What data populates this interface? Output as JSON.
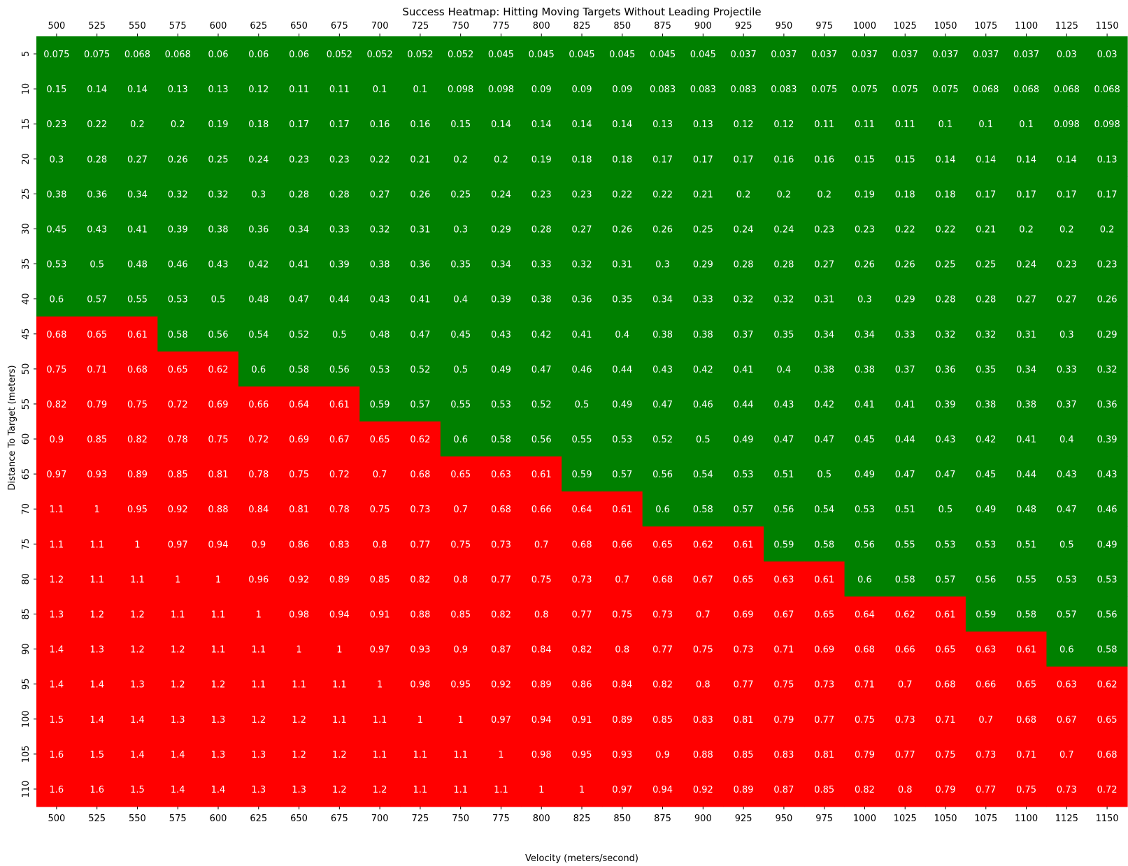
{
  "chart_data": {
    "type": "heatmap",
    "title": "Success Heatmap: Hitting Moving Targets Without Leading Projectile",
    "xlabel": "Velocity (meters/second)",
    "ylabel": "Distance To Target (meters)",
    "x": [
      "500",
      "525",
      "550",
      "575",
      "600",
      "625",
      "650",
      "675",
      "700",
      "725",
      "750",
      "775",
      "800",
      "825",
      "850",
      "875",
      "900",
      "925",
      "950",
      "975",
      "1000",
      "1025",
      "1050",
      "1075",
      "1100",
      "1125",
      "1150"
    ],
    "y": [
      "5",
      "10",
      "15",
      "20",
      "25",
      "30",
      "35",
      "40",
      "45",
      "50",
      "55",
      "60",
      "65",
      "70",
      "75",
      "80",
      "85",
      "90",
      "95",
      "100",
      "105",
      "110"
    ],
    "threshold": 0.6,
    "colors": {
      "success": "#008000",
      "fail": "#ff0000"
    },
    "values": [
      [
        "0.075",
        "0.075",
        "0.068",
        "0.068",
        "0.06",
        "0.06",
        "0.06",
        "0.052",
        "0.052",
        "0.052",
        "0.052",
        "0.045",
        "0.045",
        "0.045",
        "0.045",
        "0.045",
        "0.045",
        "0.037",
        "0.037",
        "0.037",
        "0.037",
        "0.037",
        "0.037",
        "0.037",
        "0.037",
        "0.03",
        "0.03"
      ],
      [
        "0.15",
        "0.14",
        "0.14",
        "0.13",
        "0.13",
        "0.12",
        "0.11",
        "0.11",
        "0.1",
        "0.1",
        "0.098",
        "0.098",
        "0.09",
        "0.09",
        "0.09",
        "0.083",
        "0.083",
        "0.083",
        "0.083",
        "0.075",
        "0.075",
        "0.075",
        "0.075",
        "0.068",
        "0.068",
        "0.068",
        "0.068"
      ],
      [
        "0.23",
        "0.22",
        "0.2",
        "0.2",
        "0.19",
        "0.18",
        "0.17",
        "0.17",
        "0.16",
        "0.16",
        "0.15",
        "0.14",
        "0.14",
        "0.14",
        "0.14",
        "0.13",
        "0.13",
        "0.12",
        "0.12",
        "0.11",
        "0.11",
        "0.11",
        "0.1",
        "0.1",
        "0.1",
        "0.098",
        "0.098"
      ],
      [
        "0.3",
        "0.28",
        "0.27",
        "0.26",
        "0.25",
        "0.24",
        "0.23",
        "0.23",
        "0.22",
        "0.21",
        "0.2",
        "0.2",
        "0.19",
        "0.18",
        "0.18",
        "0.17",
        "0.17",
        "0.17",
        "0.16",
        "0.16",
        "0.15",
        "0.15",
        "0.14",
        "0.14",
        "0.14",
        "0.14",
        "0.13"
      ],
      [
        "0.38",
        "0.36",
        "0.34",
        "0.32",
        "0.32",
        "0.3",
        "0.28",
        "0.28",
        "0.27",
        "0.26",
        "0.25",
        "0.24",
        "0.23",
        "0.23",
        "0.22",
        "0.22",
        "0.21",
        "0.2",
        "0.2",
        "0.2",
        "0.19",
        "0.18",
        "0.18",
        "0.17",
        "0.17",
        "0.17",
        "0.17"
      ],
      [
        "0.45",
        "0.43",
        "0.41",
        "0.39",
        "0.38",
        "0.36",
        "0.34",
        "0.33",
        "0.32",
        "0.31",
        "0.3",
        "0.29",
        "0.28",
        "0.27",
        "0.26",
        "0.26",
        "0.25",
        "0.24",
        "0.24",
        "0.23",
        "0.23",
        "0.22",
        "0.22",
        "0.21",
        "0.2",
        "0.2",
        "0.2"
      ],
      [
        "0.53",
        "0.5",
        "0.48",
        "0.46",
        "0.43",
        "0.42",
        "0.41",
        "0.39",
        "0.38",
        "0.36",
        "0.35",
        "0.34",
        "0.33",
        "0.32",
        "0.31",
        "0.3",
        "0.29",
        "0.28",
        "0.28",
        "0.27",
        "0.26",
        "0.26",
        "0.25",
        "0.25",
        "0.24",
        "0.23",
        "0.23"
      ],
      [
        "0.6",
        "0.57",
        "0.55",
        "0.53",
        "0.5",
        "0.48",
        "0.47",
        "0.44",
        "0.43",
        "0.41",
        "0.4",
        "0.39",
        "0.38",
        "0.36",
        "0.35",
        "0.34",
        "0.33",
        "0.32",
        "0.32",
        "0.31",
        "0.3",
        "0.29",
        "0.28",
        "0.28",
        "0.27",
        "0.27",
        "0.26"
      ],
      [
        "0.68",
        "0.65",
        "0.61",
        "0.58",
        "0.56",
        "0.54",
        "0.52",
        "0.5",
        "0.48",
        "0.47",
        "0.45",
        "0.43",
        "0.42",
        "0.41",
        "0.4",
        "0.38",
        "0.38",
        "0.37",
        "0.35",
        "0.34",
        "0.34",
        "0.33",
        "0.32",
        "0.32",
        "0.31",
        "0.3",
        "0.29"
      ],
      [
        "0.75",
        "0.71",
        "0.68",
        "0.65",
        "0.62",
        "0.6",
        "0.58",
        "0.56",
        "0.53",
        "0.52",
        "0.5",
        "0.49",
        "0.47",
        "0.46",
        "0.44",
        "0.43",
        "0.42",
        "0.41",
        "0.4",
        "0.38",
        "0.38",
        "0.37",
        "0.36",
        "0.35",
        "0.34",
        "0.33",
        "0.32"
      ],
      [
        "0.82",
        "0.79",
        "0.75",
        "0.72",
        "0.69",
        "0.66",
        "0.64",
        "0.61",
        "0.59",
        "0.57",
        "0.55",
        "0.53",
        "0.52",
        "0.5",
        "0.49",
        "0.47",
        "0.46",
        "0.44",
        "0.43",
        "0.42",
        "0.41",
        "0.41",
        "0.39",
        "0.38",
        "0.38",
        "0.37",
        "0.36"
      ],
      [
        "0.9",
        "0.85",
        "0.82",
        "0.78",
        "0.75",
        "0.72",
        "0.69",
        "0.67",
        "0.65",
        "0.62",
        "0.6",
        "0.58",
        "0.56",
        "0.55",
        "0.53",
        "0.52",
        "0.5",
        "0.49",
        "0.47",
        "0.47",
        "0.45",
        "0.44",
        "0.43",
        "0.42",
        "0.41",
        "0.4",
        "0.39"
      ],
      [
        "0.97",
        "0.93",
        "0.89",
        "0.85",
        "0.81",
        "0.78",
        "0.75",
        "0.72",
        "0.7",
        "0.68",
        "0.65",
        "0.63",
        "0.61",
        "0.59",
        "0.57",
        "0.56",
        "0.54",
        "0.53",
        "0.51",
        "0.5",
        "0.49",
        "0.47",
        "0.47",
        "0.45",
        "0.44",
        "0.43",
        "0.43"
      ],
      [
        "1.1",
        "1",
        "0.95",
        "0.92",
        "0.88",
        "0.84",
        "0.81",
        "0.78",
        "0.75",
        "0.73",
        "0.7",
        "0.68",
        "0.66",
        "0.64",
        "0.61",
        "0.6",
        "0.58",
        "0.57",
        "0.56",
        "0.54",
        "0.53",
        "0.51",
        "0.5",
        "0.49",
        "0.48",
        "0.47",
        "0.46"
      ],
      [
        "1.1",
        "1.1",
        "1",
        "0.97",
        "0.94",
        "0.9",
        "0.86",
        "0.83",
        "0.8",
        "0.77",
        "0.75",
        "0.73",
        "0.7",
        "0.68",
        "0.66",
        "0.65",
        "0.62",
        "0.61",
        "0.59",
        "0.58",
        "0.56",
        "0.55",
        "0.53",
        "0.53",
        "0.51",
        "0.5",
        "0.49"
      ],
      [
        "1.2",
        "1.1",
        "1.1",
        "1",
        "1",
        "0.96",
        "0.92",
        "0.89",
        "0.85",
        "0.82",
        "0.8",
        "0.77",
        "0.75",
        "0.73",
        "0.7",
        "0.68",
        "0.67",
        "0.65",
        "0.63",
        "0.61",
        "0.6",
        "0.58",
        "0.57",
        "0.56",
        "0.55",
        "0.53",
        "0.53"
      ],
      [
        "1.3",
        "1.2",
        "1.2",
        "1.1",
        "1.1",
        "1",
        "0.98",
        "0.94",
        "0.91",
        "0.88",
        "0.85",
        "0.82",
        "0.8",
        "0.77",
        "0.75",
        "0.73",
        "0.7",
        "0.69",
        "0.67",
        "0.65",
        "0.64",
        "0.62",
        "0.61",
        "0.59",
        "0.58",
        "0.57",
        "0.56"
      ],
      [
        "1.4",
        "1.3",
        "1.2",
        "1.2",
        "1.1",
        "1.1",
        "1",
        "1",
        "0.97",
        "0.93",
        "0.9",
        "0.87",
        "0.84",
        "0.82",
        "0.8",
        "0.77",
        "0.75",
        "0.73",
        "0.71",
        "0.69",
        "0.68",
        "0.66",
        "0.65",
        "0.63",
        "0.61",
        "0.6",
        "0.58"
      ],
      [
        "1.4",
        "1.4",
        "1.3",
        "1.2",
        "1.2",
        "1.1",
        "1.1",
        "1.1",
        "1",
        "0.98",
        "0.95",
        "0.92",
        "0.89",
        "0.86",
        "0.84",
        "0.82",
        "0.8",
        "0.77",
        "0.75",
        "0.73",
        "0.71",
        "0.7",
        "0.68",
        "0.66",
        "0.65",
        "0.63",
        "0.62"
      ],
      [
        "1.5",
        "1.4",
        "1.4",
        "1.3",
        "1.3",
        "1.2",
        "1.2",
        "1.1",
        "1.1",
        "1",
        "1",
        "0.97",
        "0.94",
        "0.91",
        "0.89",
        "0.85",
        "0.83",
        "0.81",
        "0.79",
        "0.77",
        "0.75",
        "0.73",
        "0.71",
        "0.7",
        "0.68",
        "0.67",
        "0.65"
      ],
      [
        "1.6",
        "1.5",
        "1.4",
        "1.4",
        "1.3",
        "1.3",
        "1.2",
        "1.2",
        "1.1",
        "1.1",
        "1.1",
        "1",
        "0.98",
        "0.95",
        "0.93",
        "0.9",
        "0.88",
        "0.85",
        "0.83",
        "0.81",
        "0.79",
        "0.77",
        "0.75",
        "0.73",
        "0.71",
        "0.7",
        "0.68"
      ],
      [
        "1.6",
        "1.6",
        "1.5",
        "1.4",
        "1.4",
        "1.3",
        "1.3",
        "1.2",
        "1.2",
        "1.1",
        "1.1",
        "1.1",
        "1",
        "1",
        "0.97",
        "0.94",
        "0.92",
        "0.89",
        "0.87",
        "0.85",
        "0.82",
        "0.8",
        "0.79",
        "0.77",
        "0.75",
        "0.73",
        "0.72"
      ]
    ]
  }
}
